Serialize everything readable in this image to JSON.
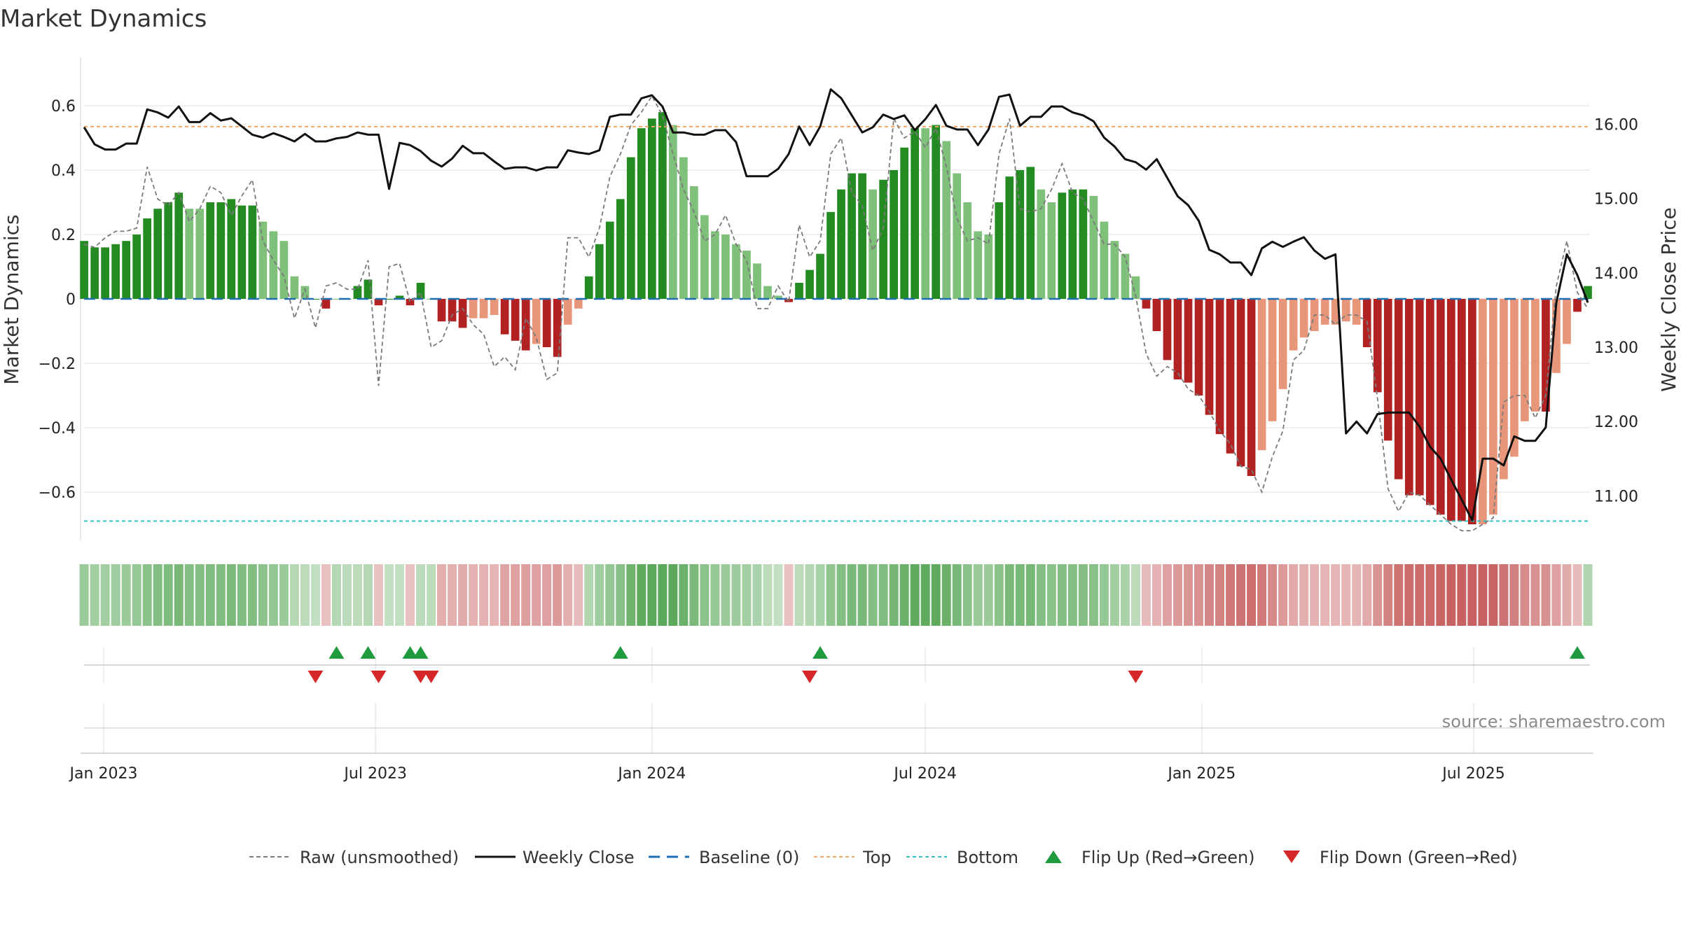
{
  "title": "Market Dynamics",
  "source": "source: sharemaestro.com",
  "colors": {
    "strong_green": "#238b22",
    "light_green": "#7fc07b",
    "strong_red": "#b22222",
    "light_red": "#e8967a",
    "close_line": "#111111",
    "raw_line": "#7a7a7a",
    "baseline": "#1f6fb0",
    "top": "#f0a868",
    "bottom": "#2ec4c4",
    "flip_up": "#1f9a3f",
    "flip_down": "#d62728",
    "grid": "#e6e6e6"
  },
  "legend": [
    {
      "key": "raw",
      "label": "Raw (unsmoothed)"
    },
    {
      "key": "close",
      "label": "Weekly Close"
    },
    {
      "key": "baseline",
      "label": "Baseline (0)"
    },
    {
      "key": "top",
      "label": "Top"
    },
    {
      "key": "bottom",
      "label": "Bottom"
    },
    {
      "key": "flip_up",
      "label": "Flip Up (Red→Green)"
    },
    {
      "key": "flip_down",
      "label": "Flip Down (Green→Red)"
    }
  ],
  "chart_data": {
    "type": "bar",
    "ylabel": "Market Dynamics",
    "y2label": "Weekly Close Price",
    "ylim": [
      -0.75,
      0.75
    ],
    "y2lim": [
      10.4,
      16.9
    ],
    "yticks": [
      0.6,
      0.4,
      0.2,
      0,
      -0.2,
      -0.4,
      -0.6
    ],
    "ytick_labels": [
      "0.6",
      "0.4",
      "0.2",
      "0",
      "−0.2",
      "−0.4",
      "−0.6"
    ],
    "y2ticks": [
      16,
      15,
      14,
      13,
      12,
      11
    ],
    "y2tick_labels": [
      "16.00",
      "15.00",
      "14.00",
      "13.00",
      "12.00",
      "11.00"
    ],
    "xticks": [
      "2023-01-01",
      "2023-07-01",
      "2024-01-01",
      "2024-07-01",
      "2025-01-01",
      "2025-07-01"
    ],
    "xtick_labels": [
      "Jan 2023",
      "Jul 2023",
      "Jan 2024",
      "Jul 2024",
      "Jan 2025",
      "Jul 2025"
    ],
    "start_date": "2022-12-19",
    "week_step_days": 7,
    "top": 0.535,
    "bottom": -0.69,
    "baseline": 0,
    "dynamics": [
      0.18,
      0.16,
      0.16,
      0.17,
      0.18,
      0.2,
      0.25,
      0.28,
      0.3,
      0.33,
      0.28,
      0.28,
      0.3,
      0.3,
      0.31,
      0.29,
      0.29,
      0.24,
      0.21,
      0.18,
      0.07,
      0.04,
      0.0,
      -0.03,
      0.0,
      0.0,
      0.04,
      0.06,
      -0.02,
      0.0,
      0.01,
      -0.02,
      0.05,
      0.0,
      -0.07,
      -0.07,
      -0.09,
      -0.06,
      -0.06,
      -0.05,
      -0.11,
      -0.13,
      -0.16,
      -0.14,
      -0.15,
      -0.18,
      -0.08,
      -0.03,
      0.07,
      0.17,
      0.24,
      0.31,
      0.44,
      0.53,
      0.56,
      0.58,
      0.54,
      0.44,
      0.35,
      0.26,
      0.21,
      0.2,
      0.17,
      0.15,
      0.11,
      0.04,
      0.01,
      -0.01,
      0.05,
      0.09,
      0.14,
      0.27,
      0.34,
      0.39,
      0.39,
      0.34,
      0.37,
      0.4,
      0.47,
      0.53,
      0.53,
      0.54,
      0.49,
      0.39,
      0.3,
      0.21,
      0.2,
      0.3,
      0.38,
      0.4,
      0.41,
      0.34,
      0.3,
      0.33,
      0.34,
      0.34,
      0.32,
      0.24,
      0.18,
      0.14,
      0.07,
      -0.03,
      -0.1,
      -0.19,
      -0.25,
      -0.26,
      -0.3,
      -0.36,
      -0.42,
      -0.48,
      -0.52,
      -0.55,
      -0.47,
      -0.38,
      -0.28,
      -0.16,
      -0.12,
      -0.1,
      -0.08,
      -0.08,
      -0.07,
      -0.08,
      -0.15,
      -0.29,
      -0.44,
      -0.56,
      -0.61,
      -0.61,
      -0.64,
      -0.67,
      -0.69,
      -0.69,
      -0.7,
      -0.7,
      -0.67,
      -0.56,
      -0.49,
      -0.38,
      -0.35,
      -0.35,
      -0.23,
      -0.14,
      -0.04,
      0.04
    ],
    "dynamics_strong": [
      1,
      1,
      1,
      1,
      1,
      1,
      1,
      1,
      1,
      1,
      0,
      0,
      1,
      1,
      1,
      1,
      1,
      0,
      0,
      0,
      0,
      0,
      1,
      1,
      0,
      1,
      1,
      1,
      1,
      1,
      1,
      1,
      1,
      0,
      1,
      1,
      1,
      0,
      0,
      0,
      1,
      1,
      1,
      0,
      1,
      1,
      0,
      0,
      1,
      1,
      1,
      1,
      1,
      1,
      1,
      1,
      0,
      0,
      0,
      0,
      0,
      0,
      0,
      0,
      0,
      0,
      0,
      1,
      1,
      1,
      1,
      1,
      1,
      1,
      1,
      0,
      1,
      1,
      1,
      1,
      0,
      1,
      0,
      0,
      0,
      0,
      0,
      1,
      1,
      1,
      1,
      0,
      0,
      1,
      1,
      1,
      0,
      0,
      0,
      0,
      0,
      1,
      1,
      1,
      1,
      1,
      1,
      1,
      1,
      1,
      1,
      1,
      0,
      0,
      0,
      0,
      0,
      0,
      0,
      0,
      0,
      0,
      1,
      1,
      1,
      1,
      1,
      1,
      1,
      1,
      1,
      1,
      1,
      0,
      0,
      0,
      0,
      0,
      0,
      1,
      0,
      0,
      1,
      1
    ],
    "raw": [
      0.17,
      0.16,
      0.19,
      0.21,
      0.21,
      0.22,
      0.41,
      0.31,
      0.29,
      0.33,
      0.24,
      0.28,
      0.35,
      0.33,
      0.26,
      0.32,
      0.37,
      0.18,
      0.12,
      0.07,
      -0.06,
      0.03,
      -0.09,
      0.04,
      0.05,
      0.03,
      0.03,
      0.12,
      -0.27,
      0.1,
      0.11,
      -0.01,
      0.02,
      -0.15,
      -0.13,
      -0.05,
      -0.03,
      -0.08,
      -0.11,
      -0.21,
      -0.18,
      -0.22,
      -0.06,
      -0.12,
      -0.25,
      -0.23,
      0.19,
      0.19,
      0.13,
      0.22,
      0.38,
      0.45,
      0.54,
      0.58,
      0.63,
      0.57,
      0.45,
      0.34,
      0.27,
      0.18,
      0.2,
      0.26,
      0.17,
      0.12,
      -0.03,
      -0.03,
      0.04,
      -0.01,
      0.23,
      0.13,
      0.18,
      0.45,
      0.5,
      0.33,
      0.29,
      0.15,
      0.22,
      0.56,
      0.5,
      0.52,
      0.47,
      0.53,
      0.41,
      0.25,
      0.18,
      0.19,
      0.17,
      0.45,
      0.56,
      0.28,
      0.27,
      0.28,
      0.34,
      0.42,
      0.33,
      0.31,
      0.24,
      0.17,
      0.17,
      0.13,
      0.01,
      -0.17,
      -0.24,
      -0.21,
      -0.23,
      -0.28,
      -0.3,
      -0.35,
      -0.41,
      -0.45,
      -0.52,
      -0.53,
      -0.6,
      -0.49,
      -0.41,
      -0.19,
      -0.16,
      -0.05,
      -0.05,
      -0.08,
      -0.05,
      -0.05,
      -0.07,
      -0.31,
      -0.59,
      -0.66,
      -0.6,
      -0.61,
      -0.64,
      -0.67,
      -0.7,
      -0.72,
      -0.72,
      -0.7,
      -0.68,
      -0.32,
      -0.3,
      -0.3,
      -0.37,
      -0.3,
      0.04,
      0.18,
      0.02,
      -0.03
    ],
    "close": [
      15.96,
      15.73,
      15.66,
      15.66,
      15.74,
      15.74,
      16.2,
      16.16,
      16.09,
      16.24,
      16.03,
      16.03,
      16.15,
      16.05,
      16.08,
      15.97,
      15.86,
      15.82,
      15.88,
      15.83,
      15.77,
      15.87,
      15.77,
      15.77,
      15.81,
      15.83,
      15.89,
      15.86,
      15.86,
      15.13,
      15.75,
      15.72,
      15.64,
      15.51,
      15.43,
      15.54,
      15.71,
      15.61,
      15.61,
      15.5,
      15.4,
      15.42,
      15.42,
      15.38,
      15.42,
      15.42,
      15.65,
      15.62,
      15.6,
      15.65,
      16.1,
      16.13,
      16.13,
      16.35,
      16.39,
      16.24,
      15.89,
      15.89,
      15.86,
      15.86,
      15.92,
      15.92,
      15.76,
      15.3,
      15.3,
      15.3,
      15.4,
      15.6,
      15.97,
      15.72,
      15.97,
      16.47,
      16.35,
      16.12,
      15.89,
      15.96,
      16.13,
      16.07,
      16.12,
      15.92,
      16.07,
      16.26,
      15.98,
      15.93,
      15.93,
      15.72,
      15.93,
      16.37,
      16.4,
      15.98,
      16.1,
      16.1,
      16.24,
      16.24,
      16.16,
      16.12,
      16.04,
      15.82,
      15.7,
      15.53,
      15.49,
      15.39,
      15.53,
      15.28,
      15.03,
      14.91,
      14.7,
      14.31,
      14.25,
      14.14,
      14.14,
      13.97,
      14.33,
      14.42,
      14.35,
      14.42,
      14.48,
      14.3,
      14.19,
      14.25,
      11.84,
      12.0,
      11.84,
      12.1,
      12.12,
      12.12,
      12.12,
      11.93,
      11.66,
      11.5,
      11.22,
      10.95,
      10.67,
      11.5,
      11.5,
      11.41,
      11.8,
      11.74,
      11.74,
      11.92,
      13.6,
      14.25,
      13.97,
      13.6
    ]
  },
  "strip_data": {
    "strength": [
      0.45,
      0.4,
      0.4,
      0.42,
      0.45,
      0.5,
      0.6,
      0.65,
      0.7,
      0.75,
      0.65,
      0.65,
      0.7,
      0.7,
      0.72,
      0.68,
      0.68,
      0.58,
      0.52,
      0.46,
      0.25,
      0.2,
      0.15,
      0.15,
      0.25,
      0.2,
      0.2,
      0.25,
      0.15,
      0.15,
      0.15,
      0.15,
      0.2,
      0.2,
      0.3,
      0.3,
      0.32,
      0.28,
      0.28,
      0.26,
      0.38,
      0.4,
      0.44,
      0.4,
      0.42,
      0.48,
      0.3,
      0.2,
      0.3,
      0.42,
      0.52,
      0.62,
      0.82,
      0.95,
      1.0,
      1.0,
      0.98,
      0.85,
      0.72,
      0.58,
      0.5,
      0.48,
      0.44,
      0.4,
      0.32,
      0.2,
      0.15,
      0.15,
      0.2,
      0.28,
      0.36,
      0.55,
      0.66,
      0.74,
      0.74,
      0.66,
      0.7,
      0.76,
      0.86,
      0.95,
      0.95,
      0.96,
      0.88,
      0.74,
      0.6,
      0.48,
      0.46,
      0.6,
      0.72,
      0.75,
      0.76,
      0.66,
      0.6,
      0.64,
      0.65,
      0.65,
      0.62,
      0.5,
      0.4,
      0.34,
      0.2,
      0.2,
      0.28,
      0.4,
      0.48,
      0.5,
      0.55,
      0.62,
      0.68,
      0.74,
      0.78,
      0.82,
      0.72,
      0.6,
      0.48,
      0.34,
      0.3,
      0.28,
      0.26,
      0.26,
      0.24,
      0.26,
      0.34,
      0.52,
      0.68,
      0.8,
      0.86,
      0.86,
      0.88,
      0.9,
      0.92,
      0.92,
      0.93,
      0.93,
      0.9,
      0.78,
      0.7,
      0.58,
      0.55,
      0.55,
      0.42,
      0.32,
      0.2,
      0.3
    ]
  },
  "flips": {
    "up": [
      "2023-06-05",
      "2023-06-26",
      "2023-07-24",
      "2023-07-31",
      "2023-12-11",
      "2024-04-22",
      "2025-09-08"
    ],
    "down": [
      "2023-05-22",
      "2023-07-03",
      "2023-07-31",
      "2023-08-07",
      "2024-04-15",
      "2024-11-18"
    ]
  }
}
